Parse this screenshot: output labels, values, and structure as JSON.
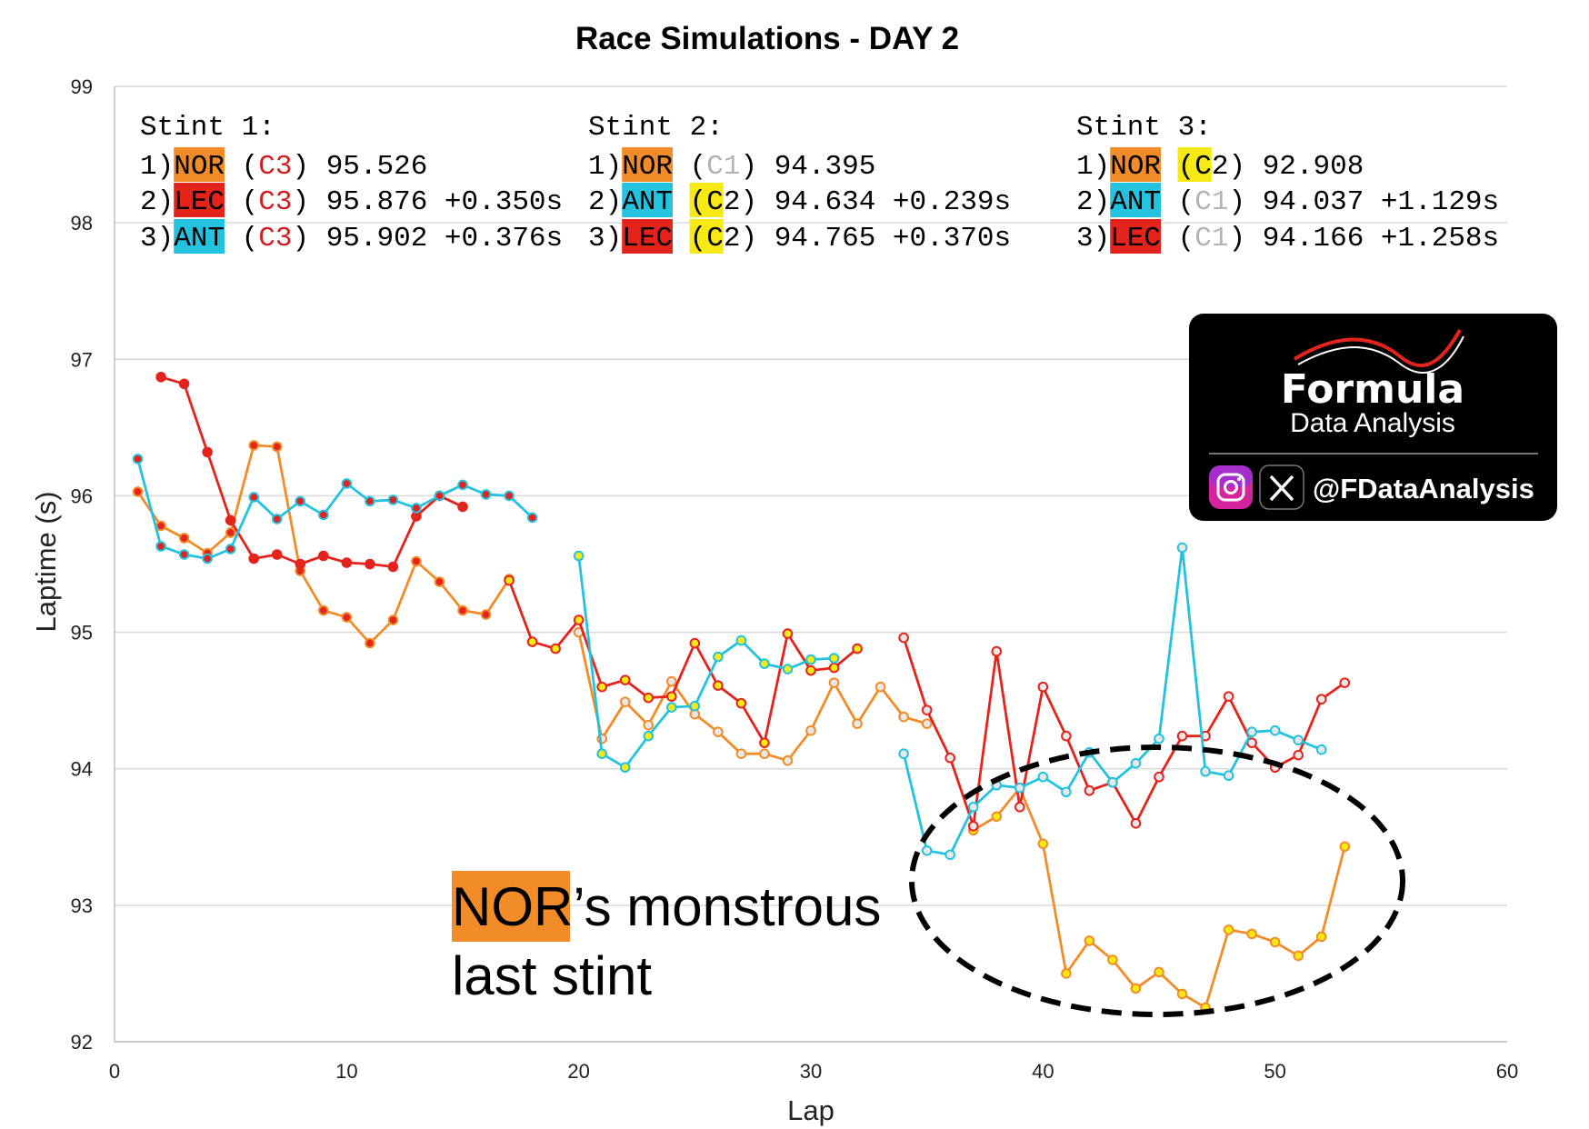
{
  "chart_data": {
    "type": "line",
    "title": "Race Simulations - DAY 2",
    "xlabel": "Lap",
    "ylabel": "Laptime (s)",
    "xlim": [
      0,
      60
    ],
    "ylim": [
      92,
      99
    ],
    "xticks": [
      0,
      10,
      20,
      30,
      40,
      50,
      60
    ],
    "yticks": [
      92,
      93,
      94,
      95,
      96,
      97,
      98,
      99
    ],
    "grid": "horizontal",
    "colors": {
      "NOR": "#f28c28",
      "LEC": "#e5231d",
      "ANT": "#23c3e0",
      "C3": "#e5231d",
      "C2": "#f7ea14",
      "C1": "#e8e8e8"
    },
    "series": [
      {
        "driver": "NOR",
        "stint": 1,
        "compound": "C3",
        "x": [
          1,
          2,
          3,
          4,
          5,
          6,
          7,
          8,
          9,
          10,
          11,
          12,
          13,
          14,
          15,
          16,
          17
        ],
        "y": [
          96.03,
          95.78,
          95.69,
          95.58,
          95.73,
          96.37,
          96.36,
          95.45,
          95.16,
          95.11,
          94.92,
          95.09,
          95.52,
          95.37,
          95.16,
          95.13,
          95.39
        ]
      },
      {
        "driver": "NOR",
        "stint": 2,
        "compound": "C1",
        "x": [
          20,
          21,
          22,
          23,
          24,
          25,
          26,
          27,
          28,
          29,
          30,
          31,
          32,
          33,
          34,
          35
        ],
        "y": [
          95.0,
          94.22,
          94.49,
          94.32,
          94.64,
          94.4,
          94.27,
          94.11,
          94.11,
          94.06,
          94.28,
          94.63,
          94.33,
          94.6,
          94.38,
          94.33
        ]
      },
      {
        "driver": "NOR",
        "stint": 3,
        "compound": "C2",
        "x": [
          37,
          38,
          39,
          40,
          41,
          42,
          43,
          44,
          45,
          46,
          47,
          48,
          49,
          50,
          51,
          52,
          53
        ],
        "y": [
          93.55,
          93.65,
          93.86,
          93.45,
          92.5,
          92.74,
          92.6,
          92.39,
          92.51,
          92.35,
          92.25,
          92.82,
          92.79,
          92.73,
          92.63,
          92.77,
          93.43
        ]
      },
      {
        "driver": "LEC",
        "stint": 1,
        "compound": "C3",
        "x": [
          2,
          3,
          4,
          5,
          6,
          7,
          8,
          9,
          10,
          11,
          12,
          13,
          14,
          15
        ],
        "y": [
          96.87,
          96.82,
          96.32,
          95.82,
          95.54,
          95.57,
          95.5,
          95.56,
          95.51,
          95.5,
          95.48,
          95.85,
          96.0,
          95.92
        ]
      },
      {
        "driver": "LEC",
        "stint": 2,
        "compound": "C2",
        "x": [
          17,
          18,
          19,
          20,
          21,
          22,
          23,
          24,
          25,
          26,
          27,
          28,
          29,
          30,
          31,
          32
        ],
        "y": [
          95.38,
          94.93,
          94.88,
          95.09,
          94.6,
          94.65,
          94.52,
          94.53,
          94.92,
          94.61,
          94.48,
          94.19,
          94.99,
          94.72,
          94.74,
          94.88
        ]
      },
      {
        "driver": "LEC",
        "stint": 3,
        "compound": "C1",
        "x": [
          34,
          35,
          36,
          37,
          38,
          39,
          40,
          41,
          42,
          43,
          44,
          45,
          46,
          47,
          48,
          49,
          50,
          51,
          52,
          53
        ],
        "y": [
          94.96,
          94.43,
          94.08,
          93.58,
          94.86,
          93.72,
          94.6,
          94.24,
          93.84,
          93.9,
          93.6,
          93.94,
          94.24,
          94.24,
          94.53,
          94.19,
          94.01,
          94.1,
          94.51,
          94.63
        ]
      },
      {
        "driver": "ANT",
        "stint": 1,
        "compound": "C3",
        "x": [
          1,
          2,
          3,
          4,
          5,
          6,
          7,
          8,
          9,
          10,
          11,
          12,
          13,
          14,
          15,
          16,
          17,
          18
        ],
        "y": [
          96.27,
          95.63,
          95.57,
          95.54,
          95.61,
          95.99,
          95.83,
          95.96,
          95.86,
          96.09,
          95.96,
          95.97,
          95.91,
          96.0,
          96.08,
          96.01,
          96.0,
          95.84
        ]
      },
      {
        "driver": "ANT",
        "stint": 2,
        "compound": "C2",
        "x": [
          20,
          21,
          22,
          23,
          24,
          25,
          26,
          27,
          28,
          29,
          30,
          31
        ],
        "y": [
          95.56,
          94.11,
          94.01,
          94.24,
          94.45,
          94.46,
          94.82,
          94.94,
          94.77,
          94.73,
          94.8,
          94.81
        ]
      },
      {
        "driver": "ANT",
        "stint": 3,
        "compound": "C1",
        "x": [
          34,
          35,
          36,
          37,
          38,
          39,
          40,
          41,
          42,
          43,
          44,
          45,
          46,
          47,
          48,
          49,
          50,
          51,
          52
        ],
        "y": [
          94.11,
          93.4,
          93.37,
          93.72,
          93.88,
          93.86,
          93.94,
          93.83,
          94.12,
          93.9,
          94.04,
          94.22,
          95.62,
          93.98,
          93.95,
          94.27,
          94.28,
          94.21,
          94.14
        ]
      }
    ],
    "stint_summary": [
      {
        "header": "Stint 1:",
        "rows": [
          {
            "pos": "1)",
            "driver": "NOR",
            "compound": "C3",
            "time": "95.526",
            "gap": ""
          },
          {
            "pos": "2)",
            "driver": "LEC",
            "compound": "C3",
            "time": "95.876",
            "gap": "+0.350s"
          },
          {
            "pos": "3)",
            "driver": "ANT",
            "compound": "C3",
            "time": "95.902",
            "gap": "+0.376s"
          }
        ]
      },
      {
        "header": "Stint 2:",
        "rows": [
          {
            "pos": "1)",
            "driver": "NOR",
            "compound": "C1",
            "time": "94.395",
            "gap": ""
          },
          {
            "pos": "2)",
            "driver": "ANT",
            "compound": "C2",
            "time": "94.634",
            "gap": "+0.239s"
          },
          {
            "pos": "3)",
            "driver": "LEC",
            "compound": "C2",
            "time": "94.765",
            "gap": "+0.370s"
          }
        ]
      },
      {
        "header": "Stint 3:",
        "rows": [
          {
            "pos": "1)",
            "driver": "NOR",
            "compound": "C2",
            "time": "92.908",
            "gap": ""
          },
          {
            "pos": "2)",
            "driver": "ANT",
            "compound": "C1",
            "time": "94.037",
            "gap": "+1.129s"
          },
          {
            "pos": "3)",
            "driver": "LEC",
            "compound": "C1",
            "time": "94.166",
            "gap": "+1.258s"
          }
        ]
      }
    ],
    "annotation": {
      "highlight": "NOR",
      "line1_rest": "’s monstrous",
      "line2": "last stint"
    }
  },
  "logo": {
    "brand": "Formula",
    "subtitle": "Data Analysis",
    "handle": "@FDataAnalysis",
    "icons": [
      "instagram-icon",
      "x-icon"
    ]
  }
}
